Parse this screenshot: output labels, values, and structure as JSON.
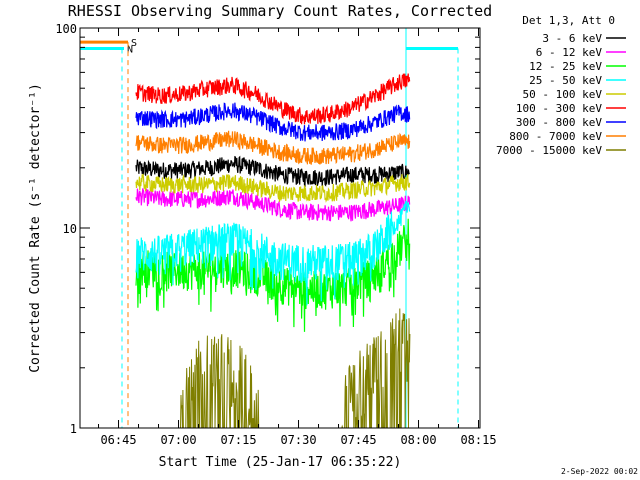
{
  "chart_data": {
    "type": "line",
    "title": "RHESSI Observing Summary Count Rates, Corrected",
    "xlabel": "Start Time (25-Jan-17 06:35:22)",
    "ylabel": "Corrected Count Rate (s⁻¹ detector⁻¹)",
    "y_scale": "log",
    "ylim": [
      1,
      100
    ],
    "xlim_minutes_from_start": [
      0,
      100
    ],
    "x_ticks": [
      {
        "label": "06:45",
        "minute": 9.63
      },
      {
        "label": "07:00",
        "minute": 24.63
      },
      {
        "label": "07:15",
        "minute": 39.63
      },
      {
        "label": "07:30",
        "minute": 54.63
      },
      {
        "label": "07:45",
        "minute": 69.63
      },
      {
        "label": "08:00",
        "minute": 84.63
      },
      {
        "label": "08:15",
        "minute": 99.63
      }
    ],
    "y_ticks": [
      {
        "label": "1",
        "value": 1
      },
      {
        "label": "10",
        "value": 10
      },
      {
        "label": "100",
        "value": 100
      }
    ],
    "legend_header": "Det 1,3, Att 0",
    "legend_position": "top-right",
    "flags": [
      {
        "label": "N",
        "color": "#00ffff",
        "minute_start": 0,
        "minute_end": 11,
        "value": 79
      },
      {
        "label": "S",
        "color": "#ff7f00",
        "minute_start": 0,
        "minute_end": 12,
        "value": 85
      }
    ],
    "series": [
      {
        "name": "3 - 6 keV",
        "color": "#000000",
        "x": [
          14,
          20,
          26,
          32,
          38,
          44,
          50,
          56,
          62,
          68,
          74,
          80,
          82.5
        ],
        "y": [
          20,
          19.5,
          19.5,
          20,
          21,
          20,
          18.5,
          18,
          18,
          18.5,
          18.5,
          19,
          19
        ]
      },
      {
        "name": "6 - 12 keV",
        "color": "#ff00ff",
        "x": [
          14,
          20,
          26,
          32,
          38,
          44,
          50,
          56,
          62,
          68,
          74,
          80,
          82.5
        ],
        "y": [
          14.5,
          14,
          14,
          14,
          14.5,
          13.5,
          12.5,
          12,
          12,
          12,
          12.5,
          13,
          13.5
        ]
      },
      {
        "name": "12 - 25 keV",
        "color": "#00ff00",
        "x": [
          14,
          20,
          26,
          32,
          38,
          44,
          50,
          56,
          62,
          68,
          74,
          80,
          82.5
        ],
        "y": [
          6.5,
          6.3,
          6.2,
          6.3,
          6.5,
          6.0,
          5.3,
          5.0,
          5.0,
          5.2,
          6.0,
          8.0,
          9.5
        ]
      },
      {
        "name": "25 - 50 keV",
        "color": "#00ffff",
        "x": [
          14,
          20,
          26,
          32,
          38,
          44,
          50,
          56,
          62,
          68,
          74,
          80,
          82.5
        ],
        "y": [
          7.5,
          7.5,
          8.0,
          8.5,
          8.8,
          8.0,
          7.0,
          6.8,
          6.8,
          7.0,
          8.0,
          11.0,
          13.5
        ]
      },
      {
        "name": "50 - 100 keV",
        "color": "#cccc00",
        "x": [
          14,
          20,
          26,
          32,
          38,
          44,
          50,
          56,
          62,
          68,
          74,
          80,
          82.5
        ],
        "y": [
          17,
          16.5,
          16.5,
          16.5,
          17,
          16,
          15,
          15,
          15,
          15.5,
          16,
          17,
          17
        ]
      },
      {
        "name": "100 - 300 keV",
        "color": "#ff0000",
        "x": [
          14,
          20,
          26,
          32,
          38,
          44,
          50,
          56,
          62,
          68,
          74,
          80,
          82.5
        ],
        "y": [
          48,
          46,
          47,
          50,
          52,
          47,
          40,
          36,
          37,
          40,
          46,
          54,
          55
        ]
      },
      {
        "name": "300 - 800 keV",
        "color": "#0000ff",
        "x": [
          14,
          20,
          26,
          32,
          38,
          44,
          50,
          56,
          62,
          68,
          74,
          80,
          82.5
        ],
        "y": [
          36,
          35,
          35,
          37,
          39,
          36,
          32,
          30,
          30,
          31,
          34,
          38,
          37
        ]
      },
      {
        "name": "800 - 7000 keV",
        "color": "#ff7f00",
        "x": [
          14,
          20,
          26,
          32,
          38,
          44,
          50,
          56,
          62,
          68,
          74,
          80,
          82.5
        ],
        "y": [
          27,
          26,
          26,
          27,
          28,
          26,
          24,
          23,
          23,
          23.5,
          25,
          27,
          27
        ]
      },
      {
        "name": "7000 - 15000 keV",
        "color": "#7f7f00",
        "x": [
          25,
          30,
          35,
          40,
          45,
          50,
          55,
          60,
          65,
          70,
          75,
          80,
          82.5
        ],
        "y": [
          1.6,
          1.8,
          1.9,
          1.7,
          1,
          1,
          1,
          1,
          1,
          1.6,
          1.9,
          2.5,
          2.2
        ]
      }
    ],
    "footer_date": "2-Sep-2022 00:02"
  }
}
